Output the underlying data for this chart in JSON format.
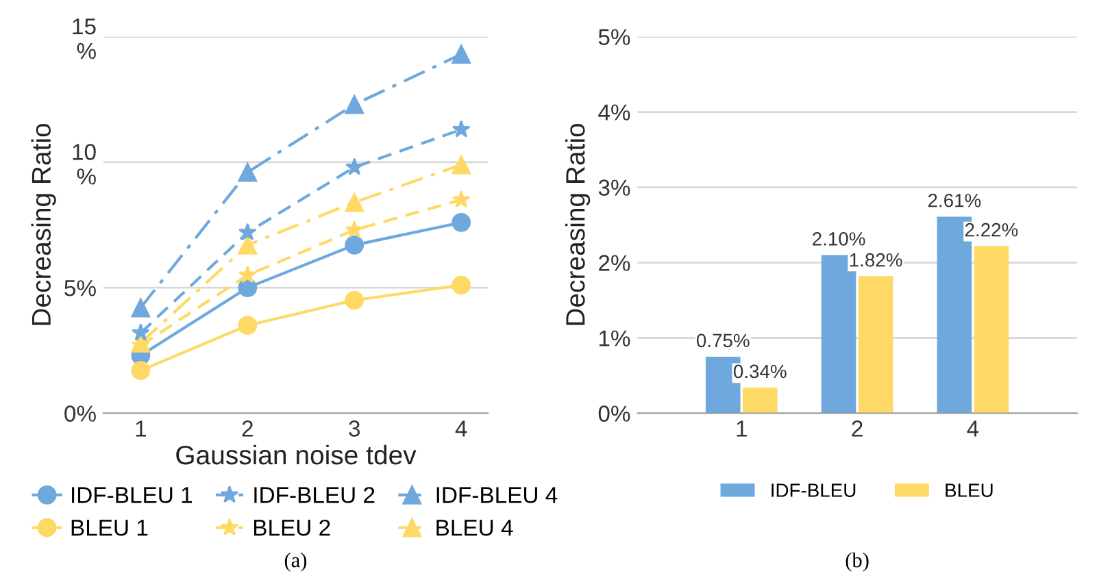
{
  "chart_data": [
    {
      "type": "line",
      "xlabel": "Gaussian noise tdev",
      "ylabel": "Decreasing Ratio",
      "categories": [
        "1",
        "2",
        "3",
        "4"
      ],
      "series": [
        {
          "name": "IDF-BLEU 1",
          "color": "#6fa8dc",
          "marker": "circle",
          "line_style": "solid",
          "values": [
            2.3,
            5.0,
            6.7,
            7.6
          ]
        },
        {
          "name": "IDF-BLEU 2",
          "color": "#6fa8dc",
          "marker": "star",
          "line_style": "dashed",
          "values": [
            3.2,
            7.2,
            9.8,
            11.3
          ]
        },
        {
          "name": "IDF-BLEU 4",
          "color": "#6fa8dc",
          "marker": "triangle",
          "line_style": "dashdot",
          "values": [
            4.2,
            9.6,
            12.3,
            14.3
          ]
        },
        {
          "name": "BLEU 1",
          "color": "#ffd966",
          "marker": "circle",
          "line_style": "solid",
          "values": [
            1.7,
            3.5,
            4.5,
            5.1
          ]
        },
        {
          "name": "BLEU 2",
          "color": "#ffd966",
          "marker": "star",
          "line_style": "dashed",
          "values": [
            2.7,
            5.5,
            7.3,
            8.5
          ]
        },
        {
          "name": "BLEU 4",
          "color": "#ffd966",
          "marker": "triangle",
          "line_style": "dashdot",
          "values": [
            2.8,
            6.7,
            8.4,
            9.9
          ]
        }
      ],
      "ylim": [
        0,
        15
      ],
      "yticks": [
        {
          "value": 0,
          "label": "0%"
        },
        {
          "value": 5,
          "label": "5%"
        },
        {
          "value": 10,
          "label": "10\n%"
        },
        {
          "value": 15,
          "label": "15\n%"
        }
      ],
      "grid": "y",
      "legend": "bottom",
      "annotations": [
        "(a)"
      ]
    },
    {
      "type": "bar",
      "ylabel": "Decreasing Ratio",
      "categories": [
        "1",
        "2",
        "4"
      ],
      "series": [
        {
          "name": "IDF-BLEU",
          "color": "#6fa8dc",
          "values": [
            0.75,
            2.1,
            2.61
          ],
          "value_labels": [
            "0.75%",
            "2.10%",
            "2.61%"
          ]
        },
        {
          "name": "BLEU",
          "color": "#ffd966",
          "values": [
            0.34,
            1.82,
            2.22
          ],
          "value_labels": [
            "0.34%",
            "1.82%",
            "2.22%"
          ]
        }
      ],
      "ylim": [
        0,
        5
      ],
      "yticks": [
        {
          "value": 0,
          "label": "0%"
        },
        {
          "value": 1,
          "label": "1%"
        },
        {
          "value": 2,
          "label": "2%"
        },
        {
          "value": 3,
          "label": "3%"
        },
        {
          "value": 4,
          "label": "4%"
        },
        {
          "value": 5,
          "label": "5%"
        }
      ],
      "grid": "y",
      "legend": "bottom",
      "annotations": [
        "(b)"
      ]
    }
  ]
}
